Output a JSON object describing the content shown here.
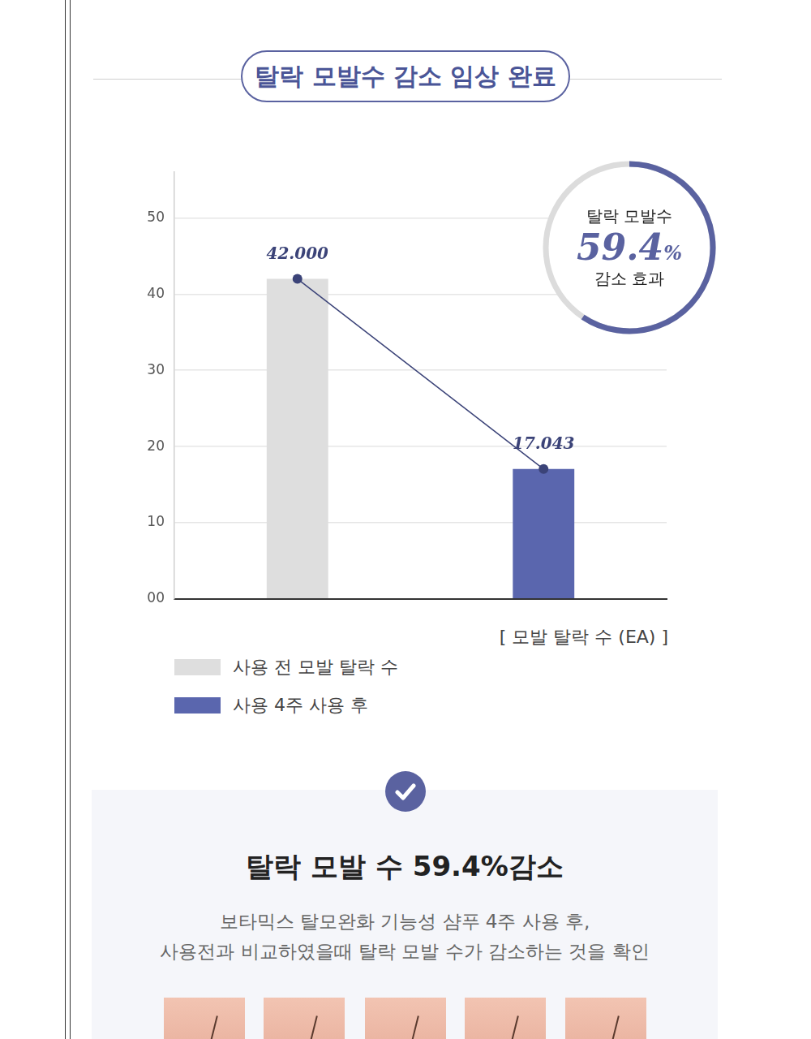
{
  "header": {
    "title": "탈락 모발수 감소 임상 완료"
  },
  "chart_data": {
    "type": "bar",
    "categories": [
      null,
      null
    ],
    "series": [
      {
        "name": "사용 전 모발 탈락 수",
        "color": "#dedede",
        "values": [
          42,
          null
        ],
        "value_labels": [
          "42.000",
          null
        ]
      },
      {
        "name": "사용 4주 사용 후",
        "color": "#5a66ae",
        "values": [
          null,
          17.043
        ],
        "value_labels": [
          null,
          "17.043"
        ]
      }
    ],
    "x_label": "[ 모발 탈락 수 (EA) ]",
    "ylim": [
      0,
      56
    ],
    "yticks": [
      {
        "value": 0,
        "label": "00"
      },
      10,
      20,
      30,
      40,
      50
    ],
    "grid": true,
    "data_labels": true,
    "legend": "bottom"
  },
  "badge": {
    "title": "탈락 모발수",
    "value": 59.4,
    "value_label": "59.4%",
    "caption": "감소 효과"
  },
  "summary": {
    "title": "탈락 모발 수 59.4%감소",
    "lines": [
      "보타믹스 탈모완화 기능성 샴푸 4주 사용 후,",
      "사용전과 비교하였을때 탈락 모발 수가 감소하는 것을 확인"
    ]
  }
}
